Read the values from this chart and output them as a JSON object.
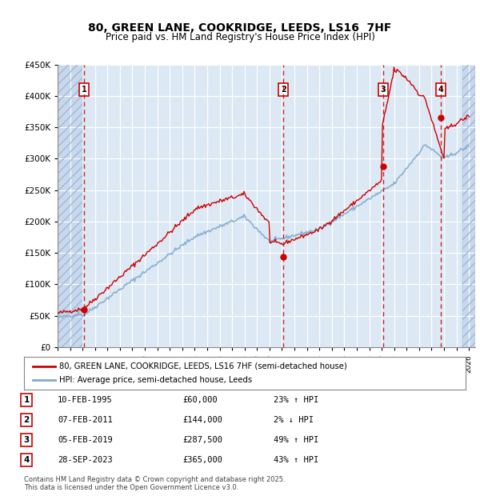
{
  "title_line1": "80, GREEN LANE, COOKRIDGE, LEEDS, LS16  7HF",
  "title_line2": "Price paid vs. HM Land Registry's House Price Index (HPI)",
  "ylim": [
    0,
    450000
  ],
  "yticks": [
    0,
    50000,
    100000,
    150000,
    200000,
    250000,
    300000,
    350000,
    400000,
    450000
  ],
  "ytick_labels": [
    "£0",
    "£50K",
    "£100K",
    "£150K",
    "£200K",
    "£250K",
    "£300K",
    "£350K",
    "£400K",
    "£450K"
  ],
  "xlim_start": 1993.0,
  "xlim_end": 2026.5,
  "xticks": [
    1993,
    1994,
    1995,
    1996,
    1997,
    1998,
    1999,
    2000,
    2001,
    2002,
    2003,
    2004,
    2005,
    2006,
    2007,
    2008,
    2009,
    2010,
    2011,
    2012,
    2013,
    2014,
    2015,
    2016,
    2017,
    2018,
    2019,
    2020,
    2021,
    2022,
    2023,
    2024,
    2025,
    2026
  ],
  "bg_color": "#dce9f5",
  "plot_area_bg": "#dce9f5",
  "hatch_color": "#c0d0e8",
  "grid_color": "#ffffff",
  "red_line_color": "#cc0000",
  "blue_line_color": "#7faacc",
  "sale_dot_color": "#cc0000",
  "vline_color": "#cc0000",
  "marker_box_color": "#cc0000",
  "legend_label_red": "80, GREEN LANE, COOKRIDGE, LEEDS, LS16 7HF (semi-detached house)",
  "legend_label_blue": "HPI: Average price, semi-detached house, Leeds",
  "transactions": [
    {
      "num": 1,
      "date": "10-FEB-1995",
      "price": 60000,
      "pct": "23%",
      "dir": "↑",
      "year": 1995.11
    },
    {
      "num": 2,
      "date": "07-FEB-2011",
      "price": 144000,
      "pct": "2%",
      "dir": "↓",
      "year": 2011.11
    },
    {
      "num": 3,
      "date": "05-FEB-2019",
      "price": 287500,
      "pct": "49%",
      "dir": "↑",
      "year": 2019.11
    },
    {
      "num": 4,
      "date": "28-SEP-2023",
      "price": 365000,
      "pct": "43%",
      "dir": "↑",
      "year": 2023.75
    }
  ],
  "footer_line1": "Contains HM Land Registry data © Crown copyright and database right 2025.",
  "footer_line2": "This data is licensed under the Open Government Licence v3.0."
}
